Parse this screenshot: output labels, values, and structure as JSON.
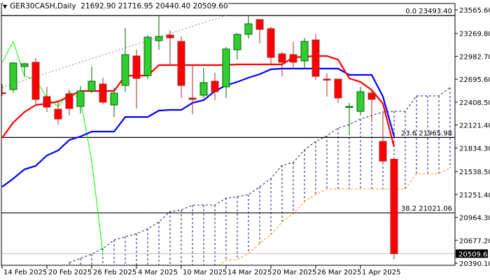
{
  "header": {
    "symbol": "GER30CASH,Daily",
    "ohlc": "21692.90 21716.95 20440.40 20509.60",
    "menu_icon": "triangle-down-icon"
  },
  "chart_data": {
    "type": "candlestick",
    "title": "",
    "ylim": [
      20390.1,
      23565.6
    ],
    "y_ticks": [
      "23565.60",
      "23269.80",
      "22982.70",
      "22695.60",
      "22408.50",
      "22121.40",
      "21834.30",
      "21538.50",
      "21251.40",
      "20964.30",
      "20677.20",
      "20390.10"
    ],
    "current_price": "20509.60",
    "x_labels": [
      {
        "date": "2025-02-14",
        "label": "14 Feb 2025"
      },
      {
        "date": "2025-02-20",
        "label": "20 Feb 2025"
      },
      {
        "date": "2025-02-26",
        "label": "26 Feb 2025"
      },
      {
        "date": "2025-03-04",
        "label": "4 Mar 2025"
      },
      {
        "date": "2025-03-10",
        "label": "10 Mar 2025"
      },
      {
        "date": "2025-03-14",
        "label": "14 Mar 2025"
      },
      {
        "date": "2025-03-20",
        "label": "20 Mar 2025"
      },
      {
        "date": "2025-03-26",
        "label": "26 Mar 2025"
      },
      {
        "date": "2025-04-01",
        "label": "1 Apr 2025"
      }
    ],
    "candles": [
      {
        "date": "2025-02-14",
        "o": 22527,
        "h": 22636,
        "l": 22487,
        "c": 22527,
        "dir": "down"
      },
      {
        "date": "2025-02-17",
        "o": 22566,
        "h": 22908,
        "l": 22522,
        "c": 22899
      },
      {
        "date": "2025-02-18",
        "o": 22855,
        "h": 22899,
        "l": 22732,
        "c": 22890
      },
      {
        "date": "2025-02-19",
        "o": 22908,
        "h": 22960,
        "l": 22381,
        "c": 22443
      },
      {
        "date": "2025-02-20",
        "o": 22478,
        "h": 22601,
        "l": 22285,
        "c": 22346
      },
      {
        "date": "2025-02-21",
        "o": 22320,
        "h": 22434,
        "l": 22127,
        "c": 22197
      },
      {
        "date": "2025-02-24",
        "o": 22513,
        "h": 22566,
        "l": 22241,
        "c": 22329
      },
      {
        "date": "2025-02-25",
        "o": 22355,
        "h": 22610,
        "l": 22267,
        "c": 22548
      },
      {
        "date": "2025-02-26",
        "o": 22548,
        "h": 22855,
        "l": 22522,
        "c": 22671
      },
      {
        "date": "2025-02-27",
        "o": 22636,
        "h": 22715,
        "l": 22381,
        "c": 22408
      },
      {
        "date": "2025-02-28",
        "o": 22373,
        "h": 22592,
        "l": 22224,
        "c": 22522
      },
      {
        "date": "2025-03-03",
        "o": 22618,
        "h": 23337,
        "l": 22539,
        "c": 23004
      },
      {
        "date": "2025-03-04",
        "o": 22987,
        "h": 23066,
        "l": 22329,
        "c": 22706
      },
      {
        "date": "2025-03-05",
        "o": 22741,
        "h": 23249,
        "l": 22697,
        "c": 23223
      },
      {
        "date": "2025-03-06",
        "o": 23179,
        "h": 23495,
        "l": 23065,
        "c": 23232
      },
      {
        "date": "2025-03-07",
        "o": 23249,
        "h": 23311,
        "l": 22873,
        "c": 23214
      },
      {
        "date": "2025-03-10",
        "o": 23170,
        "h": 23232,
        "l": 22460,
        "c": 22618
      },
      {
        "date": "2025-03-11",
        "o": 22460,
        "h": 22873,
        "l": 22258,
        "c": 22443
      },
      {
        "date": "2025-03-12",
        "o": 22495,
        "h": 22838,
        "l": 22460,
        "c": 22653
      },
      {
        "date": "2025-03-13",
        "o": 22671,
        "h": 22776,
        "l": 22434,
        "c": 22539
      },
      {
        "date": "2025-03-14",
        "o": 22601,
        "h": 23100,
        "l": 22460,
        "c": 23074
      },
      {
        "date": "2025-03-17",
        "o": 23065,
        "h": 23276,
        "l": 22943,
        "c": 23258
      },
      {
        "date": "2025-03-18",
        "o": 23258,
        "h": 23495,
        "l": 23206,
        "c": 23390
      },
      {
        "date": "2025-03-19",
        "o": 23443,
        "h": 23443,
        "l": 23144,
        "c": 23320
      },
      {
        "date": "2025-03-20",
        "o": 23329,
        "h": 23355,
        "l": 22873,
        "c": 22969
      },
      {
        "date": "2025-03-21",
        "o": 23013,
        "h": 23039,
        "l": 22732,
        "c": 22908
      },
      {
        "date": "2025-03-24",
        "o": 23004,
        "h": 23162,
        "l": 22820,
        "c": 22908
      },
      {
        "date": "2025-03-25",
        "o": 22925,
        "h": 23214,
        "l": 22820,
        "c": 23170
      },
      {
        "date": "2025-03-26",
        "o": 23188,
        "h": 23258,
        "l": 22688,
        "c": 22732
      },
      {
        "date": "2025-03-27",
        "o": 22697,
        "h": 22767,
        "l": 22478,
        "c": 22697,
        "dir": "down"
      },
      {
        "date": "2025-03-28",
        "o": 22697,
        "h": 22697,
        "l": 22399,
        "c": 22460
      },
      {
        "date": "2025-03-31",
        "o": 22346,
        "h": 22399,
        "l": 21995,
        "c": 22355
      },
      {
        "date": "2025-04-01",
        "o": 22293,
        "h": 22601,
        "l": 22241,
        "c": 22539
      },
      {
        "date": "2025-04-02",
        "o": 22522,
        "h": 22548,
        "l": 22153,
        "c": 22443
      },
      {
        "date": "2025-04-03",
        "o": 21916,
        "h": 22285,
        "l": 21640,
        "c": 21670
      },
      {
        "date": "2025-04-04",
        "o": 21692.9,
        "h": 21716.95,
        "l": 20440.4,
        "c": 20509.6
      }
    ],
    "ichimoku": {
      "tenkan": [
        21960,
        22153,
        22285,
        22373,
        22390,
        22416,
        22480,
        22548,
        22548,
        22548,
        22548,
        22741,
        22741,
        22741,
        22873,
        22873,
        22873,
        22873,
        22873,
        22873,
        22873,
        22881,
        22881,
        22881,
        22881,
        22881,
        22969,
        22978,
        22987,
        22987,
        22940,
        22706,
        22662,
        22560,
        22390,
        21846
      ],
      "kijun": [
        21346,
        21451,
        21566,
        21609,
        21741,
        21802,
        21934,
        21978,
        22039,
        22039,
        22039,
        22223,
        22223,
        22223,
        22302,
        22311,
        22311,
        22399,
        22434,
        22548,
        22618,
        22662,
        22715,
        22759,
        22820,
        22829,
        22829,
        22829,
        22829,
        22829,
        22829,
        22750,
        22750,
        22750,
        22480,
        21978
      ],
      "chikou_shift": 26,
      "cloud_start_date": "2025-02-14",
      "senkou_a": [
        null,
        null,
        null,
        null,
        null,
        null,
        20399,
        20452,
        20504,
        20575,
        20680,
        20723,
        20759,
        20820,
        20908,
        21039,
        21057,
        21118,
        21118,
        21118,
        21206,
        21223,
        21250,
        21346,
        21451,
        21618,
        21653,
        21811,
        21916,
        21987,
        22083,
        22127,
        22197,
        22241,
        22285,
        22294,
        22294,
        22487,
        22487,
        22487,
        22592
      ],
      "senkou_b": [
        null,
        null,
        null,
        null,
        null,
        null,
        null,
        null,
        null,
        null,
        null,
        null,
        null,
        null,
        null,
        null,
        null,
        null,
        null,
        20330,
        20425,
        20434,
        20513,
        20636,
        20750,
        20908,
        21013,
        21162,
        21250,
        21320,
        21320,
        21320,
        21320,
        21320,
        21320,
        21320,
        21320,
        21513,
        21513,
        21513,
        21583
      ]
    },
    "trendline": {
      "from": {
        "date": "2025-02-14",
        "price": 22592
      },
      "to": {
        "date": "2025-03-14",
        "price": 23495
      }
    },
    "fib_levels": [
      {
        "price": 23493.4,
        "label": "0.0 23493.40"
      },
      {
        "price": 21965.98,
        "label": "23.6 21965.98"
      },
      {
        "price": 21021.06,
        "label": "38.2 21021.06"
      }
    ],
    "colors": {
      "bull_body": "#32CD32",
      "bull_edge": "#006400",
      "bear_body": "#FF0000",
      "bear_edge": "#A52A2A",
      "tenkan": "#FF0000",
      "kijun": "#0000FF",
      "chikou": "#00FF00",
      "senkou_a": "#191970",
      "senkou_b": "#FF8C00",
      "trendline": "#778899",
      "fib": "#000000",
      "current_price_line": "#C0C0C0"
    }
  }
}
